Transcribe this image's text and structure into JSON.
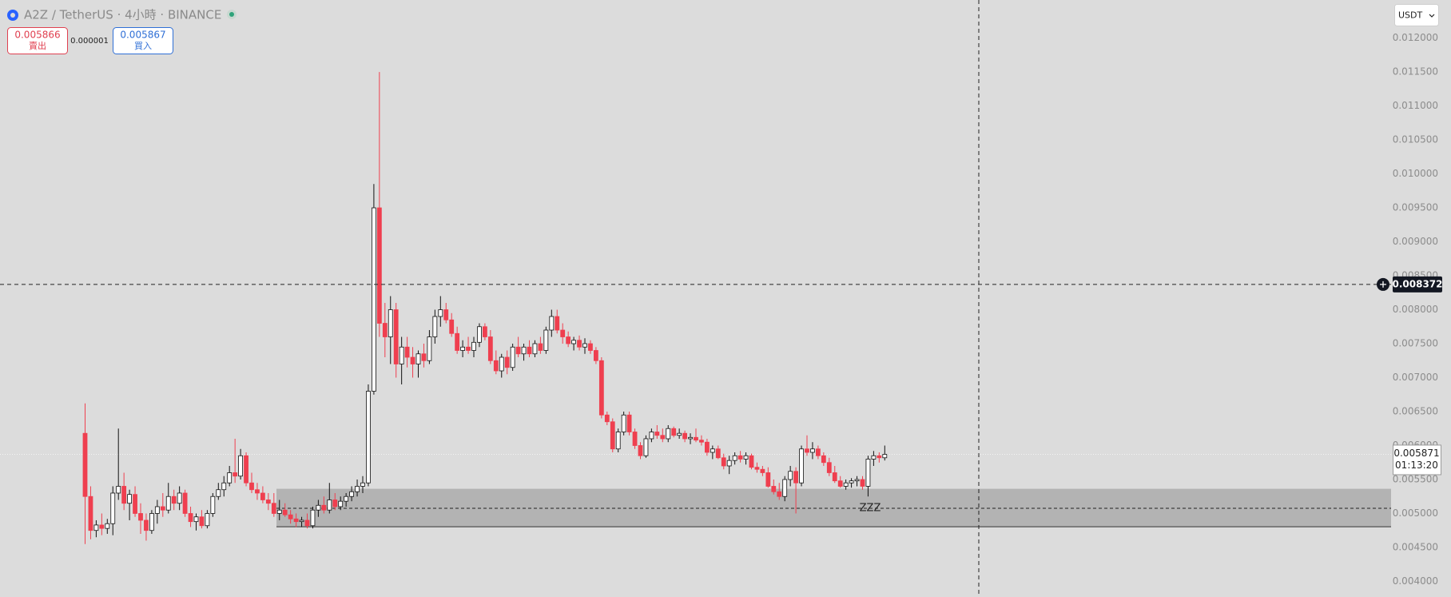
{
  "header": {
    "title": "A2Z / TetherUS · 4小時 · BINANCE",
    "sell": {
      "price": "0.005866",
      "label": "賣出"
    },
    "spread": "0.000001",
    "buy": {
      "price": "0.005867",
      "label": "買入"
    },
    "currency": "USDT"
  },
  "chart_data": {
    "type": "candlestick",
    "open": [
      0.00618,
      0.00525,
      0.00475,
      0.00483,
      0.00478,
      0.00485,
      0.0053,
      0.0054,
      0.00515,
      0.00528,
      0.005,
      0.0049,
      0.00475,
      0.005,
      0.0051,
      0.00505,
      0.00525,
      0.00515,
      0.0053,
      0.005,
      0.00488,
      0.00495,
      0.00482,
      0.005,
      0.00525,
      0.00535,
      0.00545,
      0.0056,
      0.00555,
      0.00585,
      0.00545,
      0.00535,
      0.0053,
      0.0052,
      0.00515,
      0.005,
      0.00505,
      0.00498,
      0.00492,
      0.00488,
      0.0049,
      0.00482,
      0.00505,
      0.00512,
      0.00505,
      0.0052,
      0.0051,
      0.00518,
      0.00525,
      0.00532,
      0.0054,
      0.00545,
      0.0068,
      0.0095,
      0.0078,
      0.0076,
      0.008,
      0.0072,
      0.00745,
      0.0073,
      0.0072,
      0.00735,
      0.00725,
      0.0076,
      0.0079,
      0.008,
      0.00785,
      0.00765,
      0.0074,
      0.00745,
      0.0074,
      0.00752,
      0.00775,
      0.0076,
      0.00725,
      0.0071,
      0.0073,
      0.00715,
      0.00745,
      0.00735,
      0.00745,
      0.00735,
      0.0075,
      0.0074,
      0.0077,
      0.0079,
      0.0077,
      0.0076,
      0.0075,
      0.00755,
      0.00745,
      0.0075,
      0.0074,
      0.00725,
      0.00645,
      0.00635,
      0.00595,
      0.0062,
      0.00645,
      0.0062,
      0.006,
      0.00585,
      0.0061,
      0.0062,
      0.00615,
      0.0061,
      0.00625,
      0.00615,
      0.00618,
      0.0061,
      0.00612,
      0.00608,
      0.00605,
      0.0059,
      0.00595,
      0.00582,
      0.0057,
      0.00578,
      0.00585,
      0.0058,
      0.00585,
      0.00568,
      0.00565,
      0.0056,
      0.0054,
      0.00532,
      0.00525,
      0.0055,
      0.00562,
      0.00545,
      0.00595,
      0.0059,
      0.00595,
      0.00585,
      0.00575,
      0.0056,
      0.00548,
      0.0054,
      0.00545,
      0.00548,
      0.0055,
      0.0054,
      0.0058,
      0.00585,
      0.00582
    ],
    "high": [
      0.00662,
      0.0054,
      0.0049,
      0.005,
      0.00492,
      0.0054,
      0.00625,
      0.0056,
      0.00535,
      0.0054,
      0.00515,
      0.005,
      0.00505,
      0.0052,
      0.0053,
      0.00545,
      0.00535,
      0.0054,
      0.00535,
      0.0051,
      0.005,
      0.00505,
      0.00505,
      0.0053,
      0.00545,
      0.00555,
      0.0057,
      0.0061,
      0.00595,
      0.0059,
      0.0056,
      0.00545,
      0.0054,
      0.0053,
      0.0053,
      0.0052,
      0.00515,
      0.00505,
      0.005,
      0.00495,
      0.005,
      0.0051,
      0.0052,
      0.00525,
      0.00545,
      0.0053,
      0.00525,
      0.0053,
      0.0054,
      0.0055,
      0.00555,
      0.0069,
      0.00985,
      0.0115,
      0.0081,
      0.0082,
      0.0081,
      0.0076,
      0.0076,
      0.00745,
      0.0074,
      0.0075,
      0.0077,
      0.008,
      0.0082,
      0.0081,
      0.00795,
      0.00775,
      0.00755,
      0.0076,
      0.0076,
      0.0078,
      0.0078,
      0.0077,
      0.0074,
      0.00735,
      0.0074,
      0.0075,
      0.0076,
      0.0075,
      0.00755,
      0.00755,
      0.0076,
      0.00775,
      0.008,
      0.008,
      0.0078,
      0.00768,
      0.0076,
      0.00762,
      0.00758,
      0.00755,
      0.00745,
      0.0073,
      0.0065,
      0.0064,
      0.00625,
      0.0065,
      0.0065,
      0.00625,
      0.00605,
      0.00615,
      0.00625,
      0.0063,
      0.00625,
      0.0063,
      0.00628,
      0.00625,
      0.00622,
      0.00618,
      0.00625,
      0.00615,
      0.0061,
      0.006,
      0.006,
      0.00588,
      0.00585,
      0.0059,
      0.00592,
      0.0059,
      0.00588,
      0.00575,
      0.0057,
      0.00568,
      0.0055,
      0.00545,
      0.00555,
      0.0057,
      0.00568,
      0.006,
      0.00615,
      0.00605,
      0.006,
      0.0059,
      0.00582,
      0.0057,
      0.00555,
      0.0055,
      0.00552,
      0.00555,
      0.00555,
      0.00585,
      0.00592,
      0.0059,
      0.006
    ],
    "low": [
      0.00455,
      0.00462,
      0.00465,
      0.00468,
      0.0047,
      0.00468,
      0.0052,
      0.00505,
      0.0049,
      0.00495,
      0.0047,
      0.0046,
      0.0047,
      0.00485,
      0.00495,
      0.005,
      0.00505,
      0.00505,
      0.00495,
      0.0048,
      0.00475,
      0.00478,
      0.00478,
      0.00495,
      0.0052,
      0.00525,
      0.0054,
      0.00545,
      0.0055,
      0.0054,
      0.0053,
      0.0052,
      0.00515,
      0.00505,
      0.00495,
      0.0049,
      0.00495,
      0.00485,
      0.0048,
      0.0048,
      0.00478,
      0.00478,
      0.00495,
      0.005,
      0.005,
      0.00505,
      0.00505,
      0.0051,
      0.00518,
      0.00525,
      0.0053,
      0.0054,
      0.00675,
      0.0076,
      0.0073,
      0.0072,
      0.007,
      0.0069,
      0.00715,
      0.007,
      0.007,
      0.00715,
      0.0072,
      0.0075,
      0.00775,
      0.0078,
      0.0076,
      0.00735,
      0.0073,
      0.00735,
      0.0073,
      0.00745,
      0.00755,
      0.0072,
      0.00705,
      0.007,
      0.00705,
      0.0071,
      0.0073,
      0.00725,
      0.0073,
      0.0073,
      0.00735,
      0.00735,
      0.0076,
      0.00765,
      0.0075,
      0.00745,
      0.0074,
      0.0074,
      0.00735,
      0.00735,
      0.0072,
      0.0064,
      0.0063,
      0.0059,
      0.0059,
      0.00615,
      0.00615,
      0.00595,
      0.0058,
      0.00582,
      0.00605,
      0.0061,
      0.00605,
      0.00605,
      0.00612,
      0.0061,
      0.00605,
      0.00602,
      0.00605,
      0.006,
      0.00585,
      0.0058,
      0.0058,
      0.00565,
      0.00558,
      0.00572,
      0.00575,
      0.00572,
      0.00565,
      0.0056,
      0.00555,
      0.00538,
      0.00528,
      0.0052,
      0.00518,
      0.0054,
      0.005,
      0.0054,
      0.00585,
      0.0058,
      0.0058,
      0.0057,
      0.00555,
      0.00545,
      0.00538,
      0.00535,
      0.00538,
      0.0054,
      0.00535,
      0.00525,
      0.0057,
      0.00575,
      0.00578
    ],
    "close": [
      0.00525,
      0.00475,
      0.00483,
      0.00478,
      0.00485,
      0.0053,
      0.0054,
      0.00515,
      0.00528,
      0.005,
      0.0049,
      0.00475,
      0.005,
      0.0051,
      0.00505,
      0.00525,
      0.00515,
      0.0053,
      0.005,
      0.00488,
      0.00495,
      0.00482,
      0.005,
      0.00525,
      0.00535,
      0.00545,
      0.0056,
      0.00555,
      0.00585,
      0.00545,
      0.00535,
      0.0053,
      0.0052,
      0.00515,
      0.005,
      0.00505,
      0.00498,
      0.00492,
      0.00488,
      0.0049,
      0.00482,
      0.00505,
      0.00512,
      0.00505,
      0.0052,
      0.0051,
      0.00518,
      0.00525,
      0.00532,
      0.0054,
      0.00545,
      0.0068,
      0.0095,
      0.0078,
      0.0076,
      0.008,
      0.0072,
      0.00745,
      0.0073,
      0.0072,
      0.00735,
      0.00725,
      0.0076,
      0.0079,
      0.008,
      0.00785,
      0.00765,
      0.0074,
      0.00745,
      0.0074,
      0.00752,
      0.00775,
      0.0076,
      0.00725,
      0.0071,
      0.0073,
      0.00715,
      0.00745,
      0.00735,
      0.00745,
      0.00735,
      0.0075,
      0.0074,
      0.0077,
      0.0079,
      0.0077,
      0.0076,
      0.0075,
      0.00755,
      0.00745,
      0.0075,
      0.0074,
      0.00725,
      0.00645,
      0.00635,
      0.00595,
      0.0062,
      0.00645,
      0.0062,
      0.006,
      0.00585,
      0.0061,
      0.0062,
      0.00615,
      0.0061,
      0.00625,
      0.00615,
      0.00618,
      0.0061,
      0.00612,
      0.00608,
      0.00605,
      0.0059,
      0.00595,
      0.00582,
      0.0057,
      0.00578,
      0.00585,
      0.0058,
      0.00585,
      0.00568,
      0.00565,
      0.0056,
      0.0054,
      0.00532,
      0.00525,
      0.0055,
      0.00562,
      0.00545,
      0.00595,
      0.0059,
      0.00595,
      0.00585,
      0.00575,
      0.0056,
      0.00548,
      0.0054,
      0.00545,
      0.00548,
      0.0055,
      0.0054,
      0.0058,
      0.00585,
      0.00582,
      0.005871
    ],
    "up_color": "#ffffff",
    "down_color": "#ef3f4f",
    "ylim": [
      0.00377,
      0.01256
    ],
    "yticks": [
      {
        "value": 0.004,
        "label": "0.004000"
      },
      {
        "value": 0.0045,
        "label": "0.004500"
      },
      {
        "value": 0.005,
        "label": "0.005000"
      },
      {
        "value": 0.0055,
        "label": "0.005500"
      },
      {
        "value": 0.006,
        "label": "0.006000"
      },
      {
        "value": 0.0065,
        "label": "0.006500"
      },
      {
        "value": 0.007,
        "label": "0.007000"
      },
      {
        "value": 0.0075,
        "label": "0.007500"
      },
      {
        "value": 0.008,
        "label": "0.008000"
      },
      {
        "value": 0.0085,
        "label": "0.008500"
      },
      {
        "value": 0.009,
        "label": "0.009000"
      },
      {
        "value": 0.0095,
        "label": "0.009500"
      },
      {
        "value": 0.01,
        "label": "0.010000"
      },
      {
        "value": 0.0105,
        "label": "0.010500"
      },
      {
        "value": 0.011,
        "label": "0.011000"
      },
      {
        "value": 0.0115,
        "label": "0.011500"
      },
      {
        "value": 0.012,
        "label": "0.012000"
      }
    ],
    "crosshair": {
      "value": 0.008372,
      "label": "0.008372"
    },
    "last_price": {
      "value": 0.005871,
      "label": "0.005871"
    },
    "countdown": "01:13:20",
    "zone": {
      "label": "ZZZ",
      "top": 0.005363,
      "bottom": 0.004804,
      "mid": 0.005076
    }
  }
}
